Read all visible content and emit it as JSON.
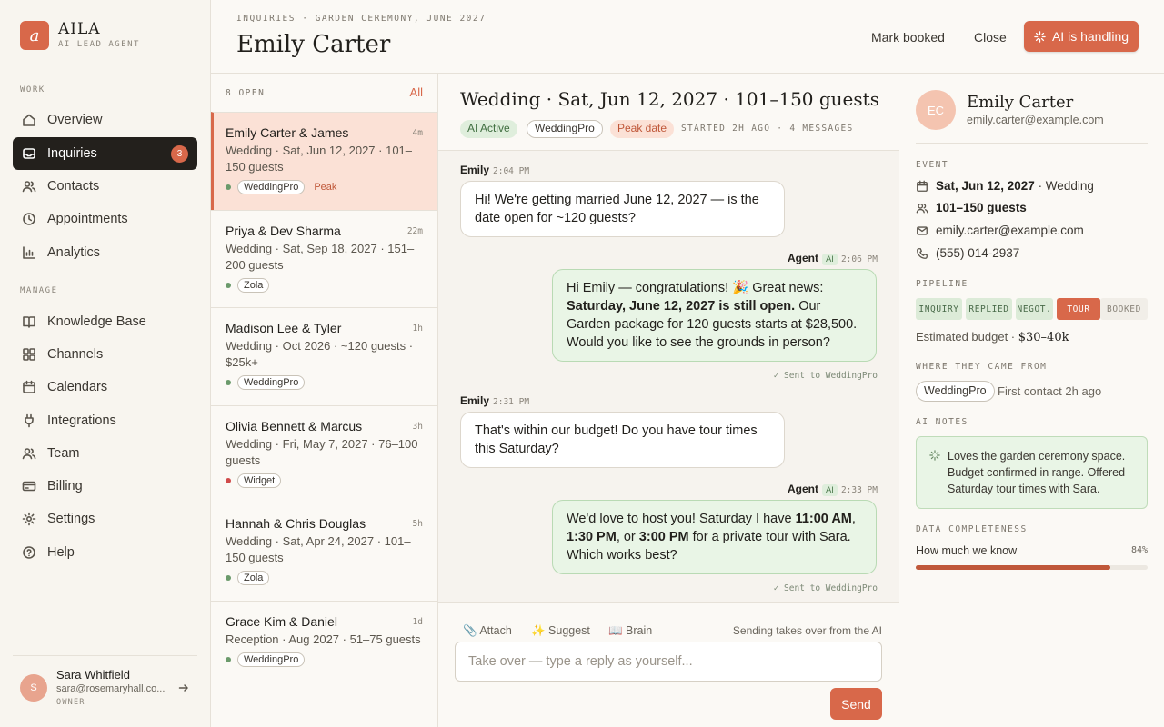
{
  "brand": {
    "logo_letter": "a",
    "name": "AILA",
    "subtitle": "AI LEAD AGENT"
  },
  "sidebar": {
    "work_label": "WORK",
    "manage_label": "MANAGE",
    "work_items": [
      {
        "label": "Overview",
        "icon": "home-icon"
      },
      {
        "label": "Inquiries",
        "icon": "inbox-icon",
        "badge": "3",
        "active": true
      },
      {
        "label": "Contacts",
        "icon": "users-icon"
      },
      {
        "label": "Appointments",
        "icon": "clock-icon"
      },
      {
        "label": "Analytics",
        "icon": "bar-chart-icon"
      }
    ],
    "manage_items": [
      {
        "label": "Knowledge Base",
        "icon": "book-icon"
      },
      {
        "label": "Channels",
        "icon": "grid-icon"
      },
      {
        "label": "Calendars",
        "icon": "calendar-icon"
      },
      {
        "label": "Integrations",
        "icon": "plug-icon"
      },
      {
        "label": "Team",
        "icon": "team-icon"
      },
      {
        "label": "Billing",
        "icon": "credit-card-icon"
      },
      {
        "label": "Settings",
        "icon": "gear-icon"
      },
      {
        "label": "Help",
        "icon": "help-icon"
      }
    ],
    "user": {
      "initial": "S",
      "name": "Sara Whitfield",
      "email": "sara@rosemaryhall.co...",
      "role": "OWNER"
    }
  },
  "header": {
    "breadcrumb": "INQUIRIES · GARDEN CEREMONY, JUNE 2027",
    "title": "Emily Carter",
    "mark_booked": "Mark booked",
    "close": "Close",
    "ai_handling": "AI is handling"
  },
  "list": {
    "count_label": "8 OPEN",
    "filter": "All",
    "items": [
      {
        "name": "Emily Carter & James",
        "time": "4m",
        "desc": "Wedding · Sat, Jun 12, 2027 · 101–150 guests",
        "source": "WeddingPro",
        "dot": "#6b9a6b",
        "extra": "Peak"
      },
      {
        "name": "Priya & Dev Sharma",
        "time": "22m",
        "desc": "Wedding · Sat, Sep 18, 2027 · 151–200 guests",
        "source": "Zola",
        "dot": "#6b9a6b",
        "extra": ""
      },
      {
        "name": "Madison Lee & Tyler",
        "time": "1h",
        "desc": "Wedding · Oct 2026 · ~120 guests · $25k+",
        "source": "WeddingPro",
        "dot": "#6b9a6b",
        "extra": ""
      },
      {
        "name": "Olivia Bennett & Marcus",
        "time": "3h",
        "desc": "Wedding · Fri, May 7, 2027 · 76–100 guests",
        "source": "Widget",
        "dot": "#d04a4a",
        "extra": ""
      },
      {
        "name": "Hannah & Chris Douglas",
        "time": "5h",
        "desc": "Wedding · Sat, Apr 24, 2027 · 101–150 guests",
        "source": "Zola",
        "dot": "#6b9a6b",
        "extra": ""
      },
      {
        "name": "Grace Kim & Daniel",
        "time": "1d",
        "desc": "Reception · Aug 2027 · 51–75 guests",
        "source": "WeddingPro",
        "dot": "#6b9a6b",
        "extra": ""
      }
    ]
  },
  "chat": {
    "title": "Wedding · Sat, Jun 12, 2027 · 101–150 guests",
    "tags": {
      "ai_active": "AI Active",
      "source": "WeddingPro",
      "peak": "Peak date"
    },
    "meta": "STARTED 2H AGO · 4 MESSAGES",
    "messages": [
      {
        "sender": "Emily",
        "time": "2:04 PM",
        "text": "Hi! We're getting married June 12, 2027 — is the date open for ~120 guests?"
      },
      {
        "sender": "Agent",
        "ai": "AI",
        "time": "2:06 PM",
        "text_a": "Hi Emily — congratulations! 🎉 Great news: ",
        "bold_a": "Saturday, June 12, 2027 is still open.",
        "text_b": " Our Garden package for 120 guests starts at $28,500. Would you like to see the grounds in person?",
        "sent": "✓ Sent to WeddingPro"
      },
      {
        "sender": "Emily",
        "time": "2:31 PM",
        "text": "That's within our budget! Do you have tour times this Saturday?"
      },
      {
        "sender": "Agent",
        "ai": "AI",
        "time": "2:33 PM",
        "text_a": "We'd love to host you! Saturday I have ",
        "bold_a": "11:00 AM",
        "mid": ", ",
        "bold_b": "1:30 PM",
        "mid2": ", or ",
        "bold_c": "3:00 PM",
        "text_b": " for a private tour with Sara. Which works best?",
        "sent": "✓ Sent to WeddingPro"
      }
    ],
    "compose": {
      "attach": "📎 Attach",
      "suggest": "✨ Suggest",
      "brain": "📖 Brain",
      "note": "Sending takes over from the AI",
      "placeholder": "Take over — type a reply as yourself...",
      "send": "Send"
    }
  },
  "details": {
    "initials": "EC",
    "name": "Emily Carter",
    "email": "emily.carter@example.com",
    "event_label": "EVENT",
    "event_date": "Sat, Jun 12, 2027",
    "event_type": " · Wedding",
    "guests": "101–150 guests",
    "contact_email": "emily.carter@example.com",
    "phone": "(555) 014-2937",
    "pipeline_label": "PIPELINE",
    "stages": [
      "INQUIRY",
      "REPLIED",
      "NEGOT.",
      "TOUR",
      "BOOKED"
    ],
    "current_stage": 3,
    "budget_label": "Estimated budget · ",
    "budget_value": "$30–40k",
    "source_label": "WHERE THEY CAME FROM",
    "source": "WeddingPro",
    "first_contact": "First contact 2h ago",
    "notes_label": "AI NOTES",
    "notes": "Loves the garden ceremony space. Budget confirmed in range. Offered Saturday tour times with Sara.",
    "completeness_label": "DATA COMPLETENESS",
    "completeness_text": "How much we know",
    "completeness_pct": "84%",
    "completeness_value": 0.84
  },
  "colors": {
    "accent": "#d8684a",
    "success": "#6b9a6b",
    "dark": "#23201c"
  }
}
